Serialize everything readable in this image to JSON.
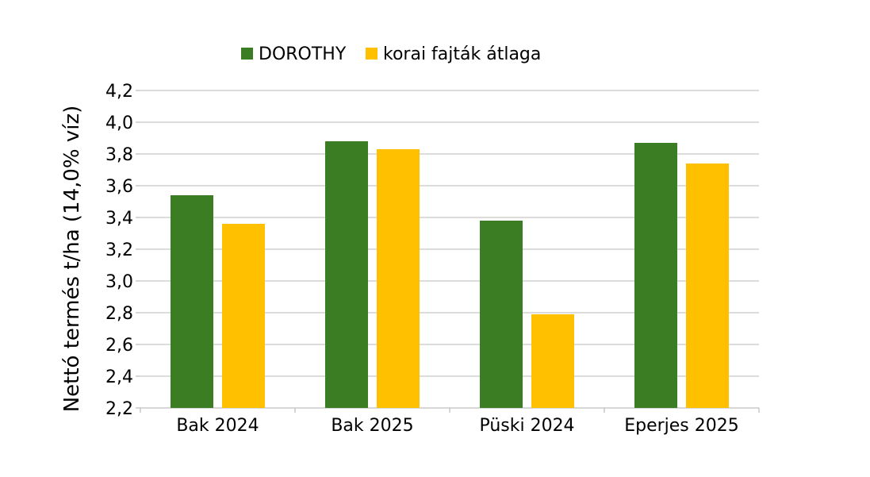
{
  "chart_data": {
    "type": "bar",
    "categories": [
      "Bak 2024",
      "Bak 2025",
      "Püski 2024",
      "Eperjes 2025"
    ],
    "series": [
      {
        "name": "DOROTHY",
        "color": "#3b7d23",
        "values": [
          3.54,
          3.88,
          3.38,
          3.87
        ]
      },
      {
        "name": "korai fajták átlaga",
        "color": "#ffc000",
        "values": [
          3.36,
          3.83,
          2.79,
          3.74
        ]
      }
    ],
    "ylabel": "Nettó termés t/ha (14,0% víz)",
    "xlabel": "",
    "ylim": [
      2.2,
      4.2
    ],
    "yticks": [
      "2,2",
      "2,4",
      "2,6",
      "2,8",
      "3,0",
      "3,2",
      "3,4",
      "3,6",
      "3,8",
      "4,0",
      "4,2"
    ],
    "grid": true,
    "legend_position": "top"
  }
}
